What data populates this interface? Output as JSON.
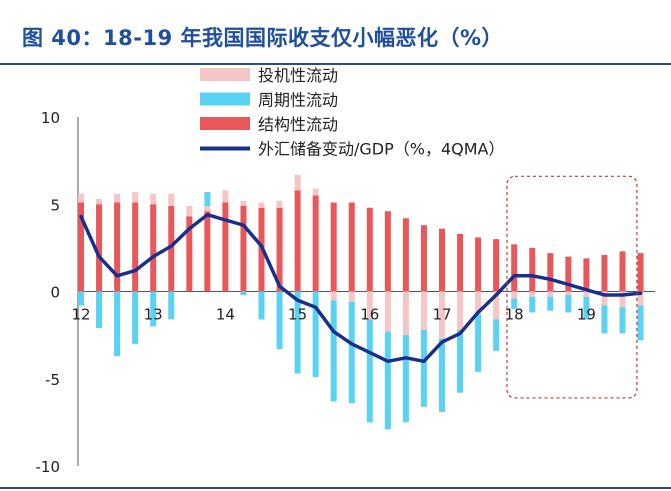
{
  "title": "图 40：18-19 年我国国际收支仅小幅恶化（%）",
  "chart_data": {
    "type": "bar",
    "subtype": "stacked bar with line overlay",
    "ylim": [
      -10,
      10
    ],
    "yticks": [
      -10,
      -5,
      0,
      5,
      10
    ],
    "xtick_labels": [
      "12",
      "13",
      "14",
      "15",
      "16",
      "17",
      "18",
      "19"
    ],
    "xtick_positions": [
      0,
      4,
      8,
      12,
      16,
      20,
      24,
      28
    ],
    "quarters": 32,
    "legend_position": "top-center",
    "highlight_box": {
      "from_quarter": 23.6,
      "to_quarter": 30.8,
      "y_top": 6.6,
      "y_bottom": -6.1,
      "color": "#c0392b"
    },
    "series": [
      {
        "name": "投机性流动",
        "kind": "bar",
        "color": "#f4c6c6",
        "values": [
          0.5,
          0.3,
          0.5,
          0.6,
          0.6,
          0.7,
          0.6,
          0.3,
          0.7,
          0.3,
          0.3,
          0.4,
          0.9,
          0.4,
          -0.5,
          -0.6,
          -1.6,
          -2.3,
          -2.5,
          -2.2,
          -2.7,
          -2.2,
          -1.3,
          -1.6,
          -0.4,
          -0.3,
          -0.3,
          -0.2,
          -0.3,
          -0.8,
          -0.9,
          -0.8
        ]
      },
      {
        "name": "周期性流动",
        "kind": "bar",
        "color": "#5ad2f4",
        "values": [
          -0.8,
          -2.1,
          -3.7,
          -3.0,
          -2.0,
          -1.6,
          0.0,
          0.8,
          0.0,
          -0.2,
          -1.6,
          -3.3,
          -4.7,
          -4.9,
          -5.8,
          -5.8,
          -5.9,
          -5.6,
          -5.0,
          -4.4,
          -4.2,
          -3.6,
          -3.3,
          -1.8,
          -0.6,
          -0.9,
          -0.8,
          -1.0,
          -1.3,
          -1.6,
          -1.5,
          -2.0
        ]
      },
      {
        "name": "结构性流动",
        "kind": "bar",
        "color": "#e8585b",
        "values": [
          5.1,
          5.0,
          5.1,
          5.1,
          5.0,
          4.9,
          4.3,
          4.6,
          5.1,
          4.9,
          4.8,
          4.8,
          5.8,
          5.5,
          5.1,
          5.1,
          4.8,
          4.6,
          4.2,
          3.8,
          3.6,
          3.3,
          3.1,
          3.0,
          2.7,
          2.5,
          2.2,
          2.0,
          1.9,
          2.1,
          2.3,
          2.2
        ]
      },
      {
        "name": "外汇储备变动/GDP（%，4QMA）",
        "kind": "line",
        "color": "#1a2f8c",
        "values": [
          4.3,
          2.0,
          0.9,
          1.2,
          2.0,
          2.6,
          3.6,
          4.4,
          4.1,
          3.8,
          2.6,
          0.3,
          -0.5,
          -0.9,
          -2.3,
          -3.0,
          -3.5,
          -4.0,
          -3.8,
          -4.0,
          -2.9,
          -2.4,
          -1.2,
          -0.2,
          0.9,
          0.9,
          0.7,
          0.4,
          0.1,
          -0.2,
          -0.2,
          -0.1
        ]
      }
    ]
  }
}
